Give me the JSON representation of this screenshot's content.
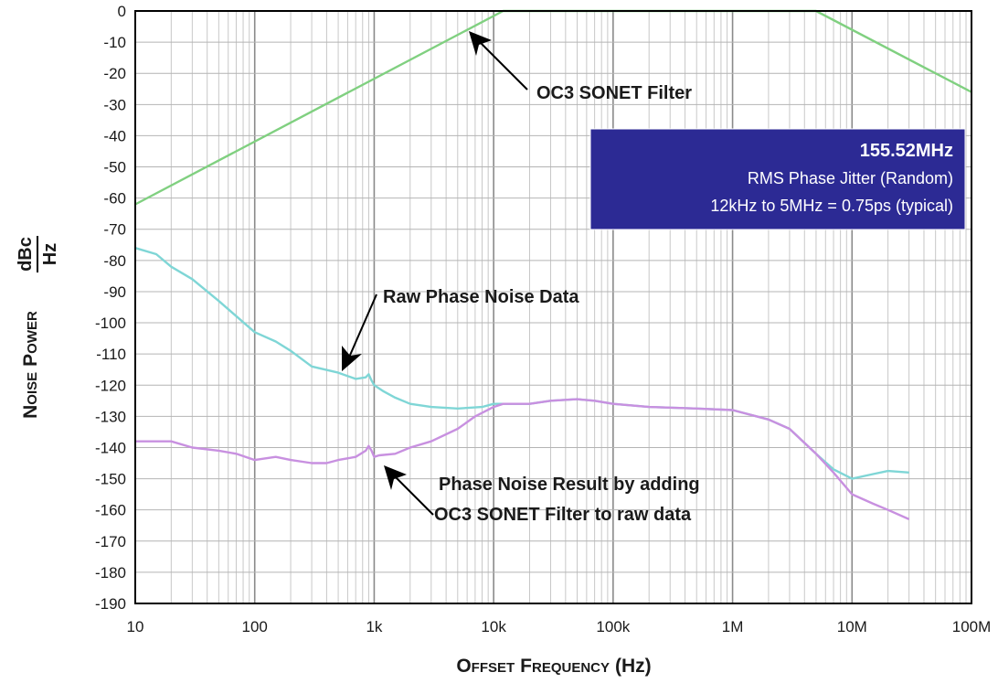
{
  "chart_data": {
    "type": "line",
    "xscale": "log",
    "xlim": [
      10,
      100000000
    ],
    "ylim": [
      -190,
      0
    ],
    "grid": true,
    "x_tick_labels": [
      "10",
      "100",
      "1k",
      "10k",
      "100k",
      "1M",
      "10M",
      "100M"
    ],
    "y_tick_labels": [
      "0",
      "-10",
      "-20",
      "-30",
      "-40",
      "-50",
      "-60",
      "-70",
      "-80",
      "-90",
      "-100",
      "-110",
      "-120",
      "-130",
      "-140",
      "-150",
      "-160",
      "-170",
      "-180",
      "-190"
    ],
    "xlabel": {
      "first_caps": [
        "O",
        "F"
      ],
      "small_caps": [
        "FFSET",
        "REQUENCY"
      ],
      "unit": "(Hz)"
    },
    "ylabel": {
      "first_caps": [
        "N",
        "P"
      ],
      "small_caps": [
        "OISE",
        "OWER"
      ],
      "unit_num": "dBc",
      "unit_den": "Hz"
    },
    "series": [
      {
        "color": "#80d080",
        "x": [
          10,
          12000,
          5000000,
          100000000
        ],
        "y": [
          -62,
          0,
          0,
          -26
        ]
      },
      {
        "color": "#7fd6d6",
        "x": [
          10,
          15,
          20,
          30,
          50,
          100,
          150,
          200,
          300,
          500,
          700,
          850,
          900,
          950,
          1000,
          1200,
          1500,
          2000,
          3000,
          5000,
          8000,
          10000,
          20000,
          30000,
          50000,
          70000,
          100000,
          200000,
          500000,
          1000000,
          2000000,
          3000000,
          5000000,
          7000000,
          10000000,
          15000000,
          20000000,
          30000000
        ],
        "y": [
          -76,
          -78,
          -82,
          -86,
          -93,
          -103,
          -106,
          -109,
          -114,
          -116,
          -118,
          -117.5,
          -116.5,
          -118.5,
          -120,
          -122,
          -124,
          -126,
          -127,
          -127.5,
          -127,
          -126,
          -126,
          -125,
          -124.5,
          -125,
          -126,
          -127,
          -127.5,
          -128,
          -131,
          -134,
          -142,
          -147,
          -150,
          -148.5,
          -147.5,
          -148
        ]
      },
      {
        "color": "#c890e0",
        "x": [
          10,
          20,
          30,
          50,
          70,
          100,
          150,
          200,
          300,
          400,
          500,
          700,
          850,
          900,
          950,
          1000,
          1100,
          1500,
          2000,
          3000,
          5000,
          7000,
          10000,
          12000,
          20000,
          30000,
          50000,
          70000,
          100000,
          200000,
          500000,
          1000000,
          2000000,
          3000000,
          5000000,
          7000000,
          10000000,
          15000000,
          20000000,
          30000000
        ],
        "y": [
          -138,
          -138,
          -140,
          -141,
          -142,
          -144,
          -143,
          -144,
          -145,
          -145,
          -144,
          -143,
          -141,
          -139.5,
          -141,
          -143,
          -142.5,
          -142,
          -140,
          -138,
          -134,
          -130,
          -127,
          -126,
          -126,
          -125,
          -124.5,
          -125,
          -126,
          -127,
          -127.5,
          -128,
          -131,
          -134,
          -142,
          -148,
          -155,
          -158,
          -160,
          -163
        ]
      }
    ],
    "annotations": [
      {
        "id": "filter",
        "lines": [
          "OC3 SONET Filter"
        ]
      },
      {
        "id": "raw",
        "lines": [
          "Raw Phase Noise Data"
        ]
      },
      {
        "id": "result",
        "lines": [
          "Phase Noise Result by adding",
          "OC3 SONET Filter to raw data"
        ]
      }
    ],
    "info_box": {
      "bg": "#2c2a94",
      "title": "155.52MHz",
      "line1": "RMS Phase Jitter  (Random)",
      "line2": "12kHz to 5MHz = 0.75ps (typical)"
    }
  }
}
